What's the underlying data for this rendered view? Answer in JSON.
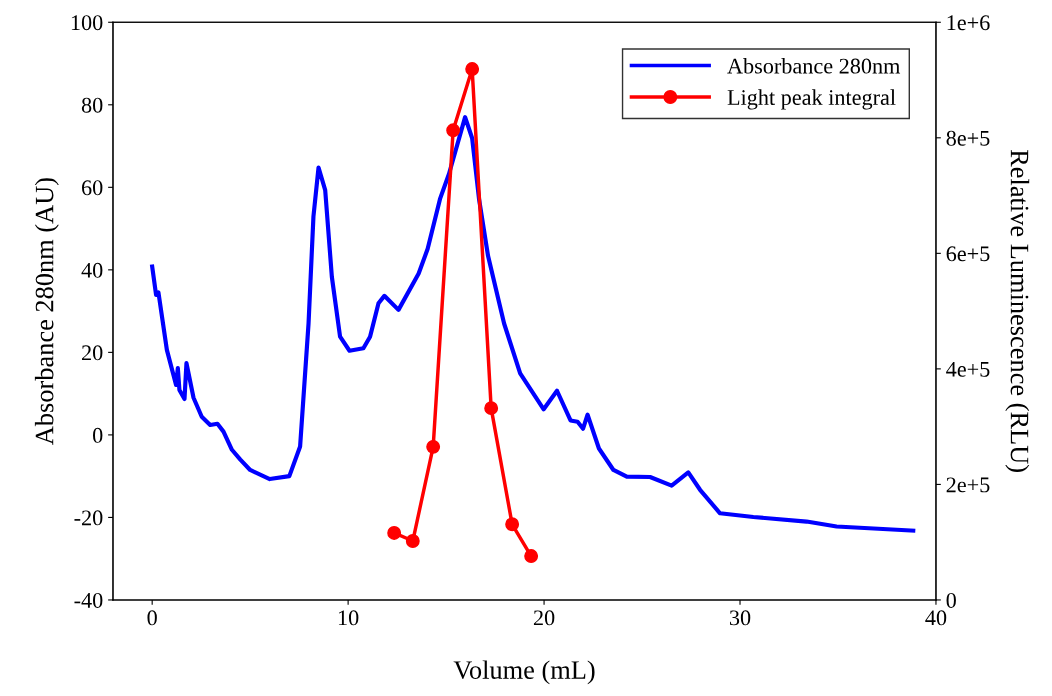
{
  "chart_data": {
    "type": "line",
    "xlabel": "Volume (mL)",
    "ylabel": "Absorbance 280nm (AU)",
    "y2label": "Relative Luminescence (RLU)",
    "xlim": [
      -2,
      40
    ],
    "xticks": [
      0,
      10,
      20,
      30,
      40
    ],
    "ylim": [
      -40,
      100
    ],
    "yticks": [
      -40,
      -20,
      0,
      20,
      40,
      60,
      80,
      100
    ],
    "y2lim": [
      0,
      1000000
    ],
    "y2ticks": [
      {
        "value": 0,
        "label": "0"
      },
      {
        "value": 200000,
        "label": "2e+5"
      },
      {
        "value": 400000,
        "label": "4e+5"
      },
      {
        "value": 600000,
        "label": "6e+5"
      },
      {
        "value": 800000,
        "label": "8e+5"
      },
      {
        "value": 1000000,
        "label": "1e+6"
      }
    ],
    "grid": false,
    "legend": "top right",
    "series": [
      {
        "name": "Absorbance 280nm",
        "color": "#0000ff",
        "marker": "none",
        "x": [
          0.0,
          0.2,
          0.32,
          0.75,
          1.22,
          1.31,
          1.39,
          1.65,
          1.75,
          2.11,
          2.53,
          2.96,
          3.33,
          3.64,
          4.07,
          4.5,
          5.0,
          6.0,
          7.0,
          7.55,
          7.98,
          8.23,
          8.49,
          8.83,
          9.17,
          9.59,
          10.07,
          10.78,
          11.12,
          11.55,
          11.85,
          12.57,
          13.6,
          14.06,
          14.69,
          15.15,
          15.97,
          16.33,
          16.68,
          17.14,
          17.96,
          18.78,
          19.98,
          20.66,
          21.35,
          21.71,
          21.99,
          22.22,
          22.8,
          23.54,
          24.22,
          25.41,
          26.51,
          27.36,
          27.96,
          28.98,
          30.68,
          33.4,
          34.93,
          38.84
        ],
        "values": [
          40.8,
          33.9,
          34.5,
          20.6,
          12.1,
          16.2,
          10.9,
          8.7,
          17.4,
          9.0,
          4.4,
          2.4,
          2.7,
          0.8,
          -3.6,
          -6.0,
          -8.5,
          -10.7,
          -10.0,
          -2.8,
          27.0,
          52.9,
          64.8,
          59.3,
          38.3,
          23.8,
          20.4,
          21.0,
          23.8,
          31.9,
          33.7,
          30.3,
          39.1,
          45.1,
          57.2,
          63.3,
          77.0,
          71.9,
          57.2,
          43.4,
          27.0,
          14.9,
          6.2,
          10.7,
          3.5,
          3.2,
          1.5,
          4.9,
          -3.3,
          -8.5,
          -10.1,
          -10.2,
          -12.3,
          -9.1,
          -13.3,
          -19.0,
          -19.9,
          -21.0,
          -22.2,
          -23.2
        ]
      },
      {
        "name": "Light peak integral",
        "color": "#ff0000",
        "marker": "circle",
        "axis": "y2",
        "x": [
          12.35,
          13.3,
          14.34,
          15.36,
          16.33,
          17.3,
          18.37,
          19.34
        ],
        "values": [
          116000,
          102000,
          265000,
          813000,
          919000,
          332000,
          131000,
          76000
        ]
      }
    ]
  }
}
